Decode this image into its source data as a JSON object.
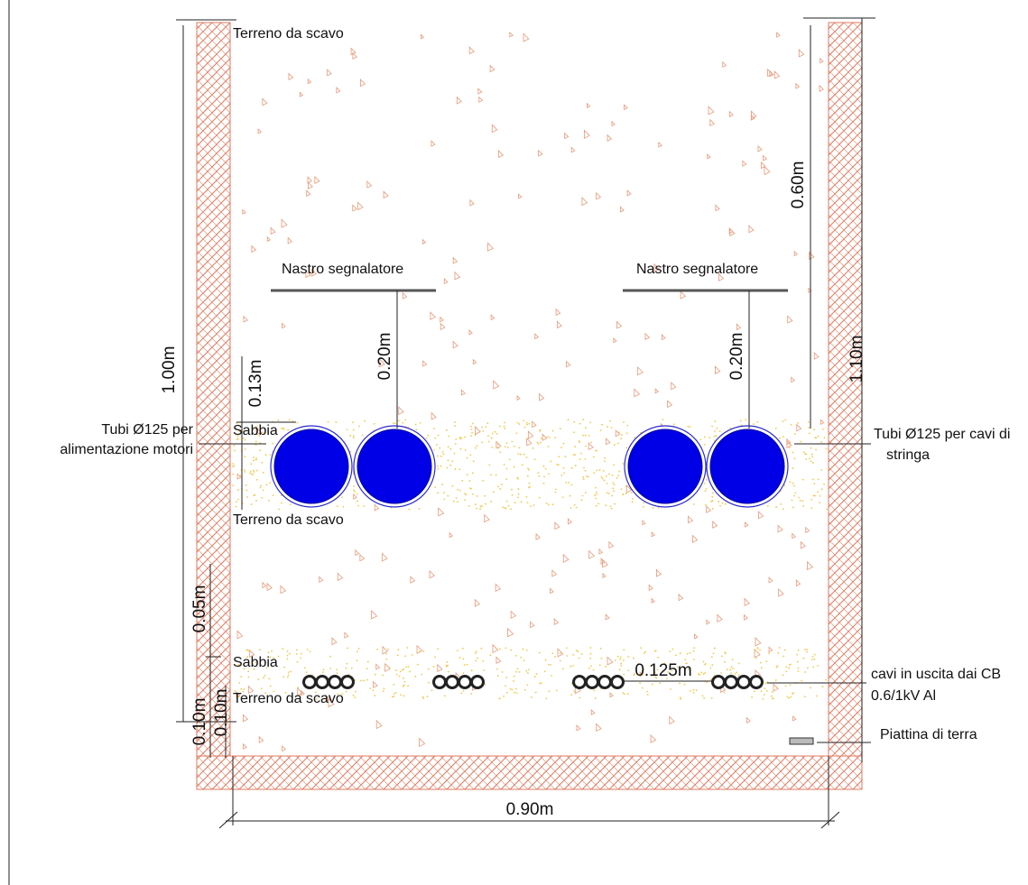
{
  "soil_labels": [
    "Terreno da scavo",
    "Terreno da scavo",
    "Terreno da scavo"
  ],
  "sand_labels": [
    "Sabbia",
    "Sabbia"
  ],
  "tape_labels": [
    "Nastro segnalatore",
    "Nastro segnalatore"
  ],
  "callouts": {
    "left_pipes": [
      "Tubi Ø125 per",
      "alimentazione motori"
    ],
    "right_pipes": [
      "Tubi Ø125 per cavi di",
      "stringa"
    ],
    "cables": [
      "cavi in uscita dai CB",
      "0.6/1kV Al"
    ],
    "earth": "Piattina di terra"
  },
  "dimensions": {
    "total_depth_left": "1.00m",
    "total_depth_right": "1.10m",
    "tape_depth": "0.60m",
    "tape_to_pipe_left": "0.20m",
    "tape_to_pipe_right": "0.20m",
    "sand_pipes": "0.13m",
    "cable_sand": "0.05m",
    "cable_bottom_left": "0.10m",
    "cable_bottom_right": "0.10m",
    "width": "0.90m",
    "cable_spacing": "0.125m"
  }
}
